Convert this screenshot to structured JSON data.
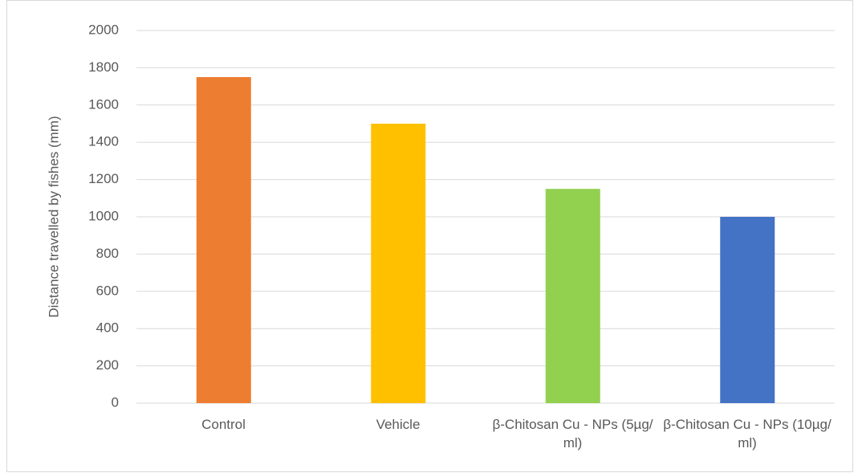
{
  "chart_data": {
    "type": "bar",
    "y_label": "Distance travelled by fishes (mm)",
    "categories": [
      "Control",
      "Vehicle",
      "β-Chitosan Cu - NPs (5µg/ ml)",
      "β-Chitosan Cu - NPs (10µg/ ml)"
    ],
    "values": [
      1750,
      1500,
      1150,
      1000
    ],
    "colors": [
      "#ed7d31",
      "#ffc000",
      "#92d050",
      "#4472c4"
    ],
    "ylim": [
      0,
      2000
    ],
    "yticks": [
      0,
      200,
      400,
      600,
      800,
      1000,
      1200,
      1400,
      1600,
      1800,
      2000
    ],
    "grid": true
  }
}
